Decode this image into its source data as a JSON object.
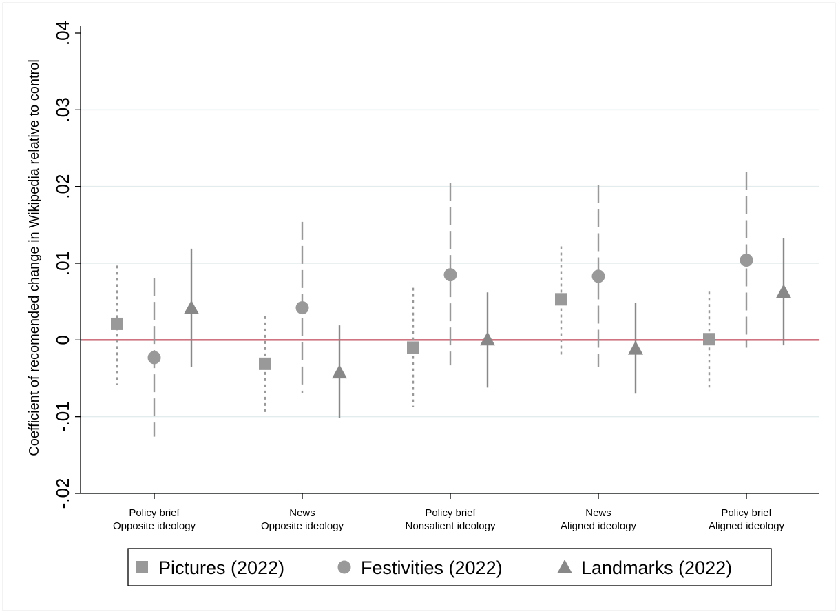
{
  "chart_data": {
    "type": "scatter",
    "ylabel": "Coefficient of recomended change in Wikipedia relative to control",
    "ylim": [
      -0.02,
      0.04
    ],
    "yticks": [
      -0.02,
      -0.01,
      0,
      0.01,
      0.02,
      0.03,
      0.04
    ],
    "ytick_labels": [
      "-.02",
      "-.01",
      "0",
      ".01",
      ".02",
      ".03",
      ".04"
    ],
    "grid": true,
    "reference_line": {
      "y": 0,
      "color": "#b22234"
    },
    "categories": [
      [
        "Policy brief",
        "Opposite ideology"
      ],
      [
        "News",
        "Opposite ideology"
      ],
      [
        "Policy brief",
        "Nonsalient ideology"
      ],
      [
        "News",
        "Aligned ideology"
      ],
      [
        "Policy brief",
        "Aligned ideology"
      ]
    ],
    "series": [
      {
        "name": "Pictures (2022)",
        "marker": "square",
        "line_style": "dotted",
        "color": "#999999",
        "values": [
          0.0021,
          -0.0031,
          -0.001,
          0.0053,
          0.0001
        ],
        "ci_low": [
          -0.0059,
          -0.0094,
          -0.0087,
          -0.0021,
          -0.0062
        ],
        "ci_high": [
          0.0097,
          0.0031,
          0.0068,
          0.0122,
          0.0063
        ]
      },
      {
        "name": "Festivities (2022)",
        "marker": "circle",
        "line_style": "dashed",
        "color": "#999999",
        "values": [
          -0.0023,
          0.0042,
          0.0085,
          0.0083,
          0.0104
        ],
        "ci_low": [
          -0.0126,
          -0.0069,
          -0.0033,
          -0.0035,
          -0.001
        ],
        "ci_high": [
          0.0081,
          0.0154,
          0.0205,
          0.0202,
          0.0219
        ]
      },
      {
        "name": "Landmarks (2022)",
        "marker": "triangle",
        "line_style": "solid",
        "color": "#888888",
        "values": [
          0.0042,
          -0.0042,
          0.0001,
          -0.0011,
          0.0063
        ],
        "ci_low": [
          -0.0035,
          -0.0102,
          -0.0062,
          -0.007,
          -0.0007
        ],
        "ci_high": [
          0.0119,
          0.0019,
          0.0062,
          0.0048,
          0.0133
        ]
      }
    ],
    "legend_position": "bottom"
  }
}
